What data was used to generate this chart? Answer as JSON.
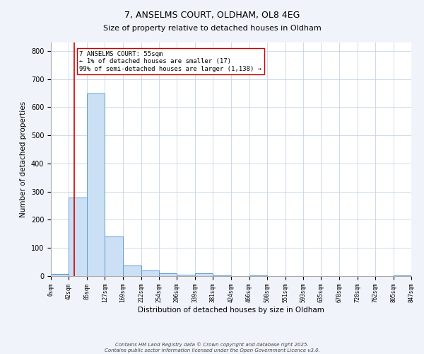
{
  "title_line1": "7, ANSELMS COURT, OLDHAM, OL8 4EG",
  "title_line2": "Size of property relative to detached houses in Oldham",
  "xlabel": "Distribution of detached houses by size in Oldham",
  "ylabel": "Number of detached properties",
  "bar_edges": [
    0,
    42,
    85,
    127,
    169,
    212,
    254,
    296,
    339,
    381,
    424,
    466,
    508,
    551,
    593,
    635,
    678,
    720,
    762,
    805,
    847
  ],
  "bar_heights": [
    8,
    280,
    648,
    142,
    38,
    20,
    10,
    6,
    10,
    2,
    0,
    3,
    0,
    0,
    0,
    0,
    0,
    0,
    0,
    2
  ],
  "bar_color": "#cce0f5",
  "bar_edge_color": "#5b9bd5",
  "property_x": 55,
  "property_line_color": "#cc0000",
  "annotation_title": "7 ANSELMS COURT: 55sqm",
  "annotation_line1": "← 1% of detached houses are smaller (17)",
  "annotation_line2": "99% of semi-detached houses are larger (1,138) →",
  "annotation_box_color": "#ffffff",
  "annotation_box_edge": "#cc0000",
  "ylim": [
    0,
    830
  ],
  "xlim": [
    0,
    847
  ],
  "tick_labels": [
    "0sqm",
    "42sqm",
    "85sqm",
    "127sqm",
    "169sqm",
    "212sqm",
    "254sqm",
    "296sqm",
    "339sqm",
    "381sqm",
    "424sqm",
    "466sqm",
    "508sqm",
    "551sqm",
    "593sqm",
    "635sqm",
    "678sqm",
    "720sqm",
    "762sqm",
    "805sqm",
    "847sqm"
  ],
  "tick_positions": [
    0,
    42,
    85,
    127,
    169,
    212,
    254,
    296,
    339,
    381,
    424,
    466,
    508,
    551,
    593,
    635,
    678,
    720,
    762,
    805,
    847
  ],
  "ytick_positions": [
    0,
    100,
    200,
    300,
    400,
    500,
    600,
    700,
    800
  ],
  "ytick_labels": [
    "0",
    "100",
    "200",
    "300",
    "400",
    "500",
    "600",
    "700",
    "800"
  ],
  "footer_line1": "Contains HM Land Registry data © Crown copyright and database right 2025.",
  "footer_line2": "Contains public sector information licensed under the Open Government Licence v3.0.",
  "background_color": "#f0f4fa",
  "plot_bg_color": "#ffffff"
}
